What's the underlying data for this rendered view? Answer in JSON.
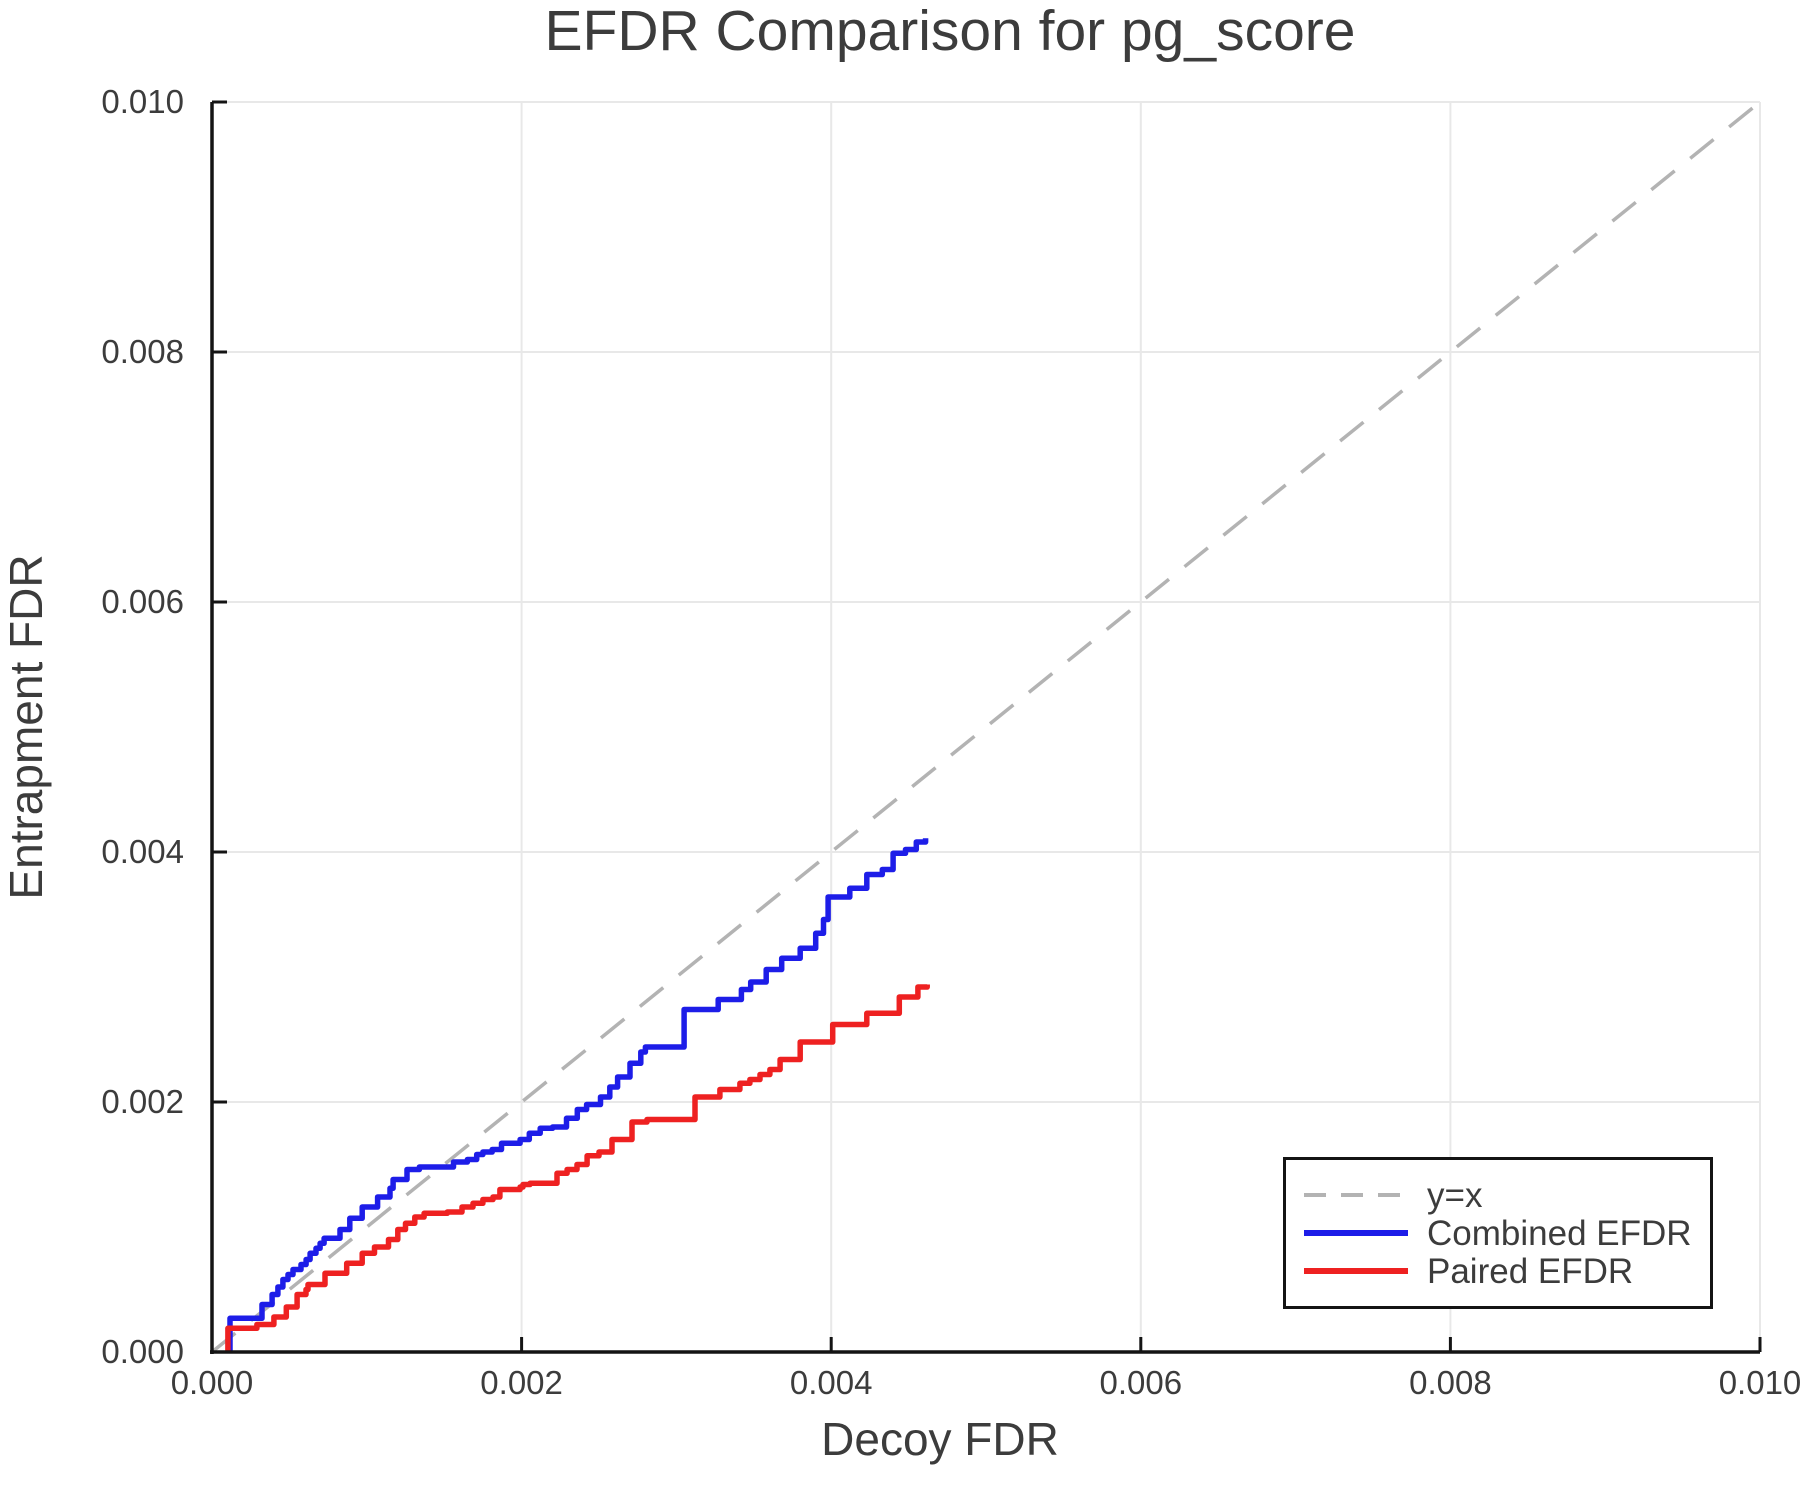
{
  "title": "EFDR Comparison for pg_score",
  "axes": {
    "x": {
      "label": "Decoy FDR",
      "ticks": [
        "0.000",
        "0.002",
        "0.004",
        "0.006",
        "0.008",
        "0.010"
      ]
    },
    "y": {
      "label": "Entrapment FDR",
      "ticks": [
        "0.000",
        "0.002",
        "0.004",
        "0.006",
        "0.008",
        "0.010"
      ]
    }
  },
  "legend": {
    "items": [
      {
        "label": "y=x",
        "color": "#b3b3b3",
        "style": "dashed"
      },
      {
        "label": "Combined EFDR",
        "color": "#1d1de8",
        "style": "solid"
      },
      {
        "label": "Paired EFDR",
        "color": "#ee2121",
        "style": "solid"
      }
    ]
  },
  "colors": {
    "text": "#3c3c3c",
    "spine": "#141414",
    "grid": "#e8e8e8",
    "background": "#ffffff"
  },
  "chart_data": {
    "type": "line",
    "title": "EFDR Comparison for pg_score",
    "xlabel": "Decoy FDR",
    "ylabel": "Entrapment FDR",
    "xlim": [
      0.0,
      0.01
    ],
    "ylim": [
      0.0,
      0.01
    ],
    "grid": true,
    "legend_position": "lower right",
    "series": [
      {
        "name": "y=x",
        "style": "dashed",
        "color": "#b3b3b3",
        "points": [
          [
            0.0,
            0.0
          ],
          [
            0.01,
            0.01
          ]
        ]
      },
      {
        "name": "Combined EFDR",
        "style": "step",
        "color": "#1d1de8",
        "points": [
          [
            0.000116,
            0.0
          ],
          [
            0.000116,
            0.00027
          ],
          [
            0.000323,
            0.00038
          ],
          [
            0.000388,
            0.00046
          ],
          [
            0.000426,
            0.00052
          ],
          [
            0.000458,
            0.00058
          ],
          [
            0.000491,
            0.00062
          ],
          [
            0.000523,
            0.00066
          ],
          [
            0.000575,
            0.0007
          ],
          [
            0.000608,
            0.00074
          ],
          [
            0.000634,
            0.00079
          ],
          [
            0.000672,
            0.00083
          ],
          [
            0.000698,
            0.00087
          ],
          [
            0.000724,
            0.00091
          ],
          [
            0.000827,
            0.00098
          ],
          [
            0.00089,
            0.00107
          ],
          [
            0.00097,
            0.00116
          ],
          [
            0.00107,
            0.00124
          ],
          [
            0.00115,
            0.00131
          ],
          [
            0.00117,
            0.00138
          ],
          [
            0.00126,
            0.00146
          ],
          [
            0.00134,
            0.00148
          ],
          [
            0.00156,
            0.00152
          ],
          [
            0.00165,
            0.00154
          ],
          [
            0.00171,
            0.00158
          ],
          [
            0.00175,
            0.0016
          ],
          [
            0.00181,
            0.00162
          ],
          [
            0.00187,
            0.00167
          ],
          [
            0.00199,
            0.0017
          ],
          [
            0.00205,
            0.00175
          ],
          [
            0.00212,
            0.00179
          ],
          [
            0.0022,
            0.0018
          ],
          [
            0.00229,
            0.00187
          ],
          [
            0.00236,
            0.00194
          ],
          [
            0.00242,
            0.00198
          ],
          [
            0.00251,
            0.00204
          ],
          [
            0.00257,
            0.00212
          ],
          [
            0.00262,
            0.0022
          ],
          [
            0.0027,
            0.00231
          ],
          [
            0.00277,
            0.0024
          ],
          [
            0.0028,
            0.00244
          ],
          [
            0.00305,
            0.00274
          ],
          [
            0.00327,
            0.00282
          ],
          [
            0.00342,
            0.0029
          ],
          [
            0.00348,
            0.00296
          ],
          [
            0.00358,
            0.00306
          ],
          [
            0.00368,
            0.00315
          ],
          [
            0.0038,
            0.00323
          ],
          [
            0.0039,
            0.00335
          ],
          [
            0.00395,
            0.00346
          ],
          [
            0.00398,
            0.00364
          ],
          [
            0.00412,
            0.00371
          ],
          [
            0.00423,
            0.00382
          ],
          [
            0.00433,
            0.00386
          ],
          [
            0.0044,
            0.00399
          ],
          [
            0.00448,
            0.00402
          ],
          [
            0.00455,
            0.00408
          ],
          [
            0.00461,
            0.00411
          ]
        ]
      },
      {
        "name": "Paired EFDR",
        "style": "step",
        "color": "#ee2121",
        "points": [
          [
            0.000103,
            0.0
          ],
          [
            0.000103,
            0.00019
          ],
          [
            0.00029,
            0.00022
          ],
          [
            0.0004,
            0.00028
          ],
          [
            0.00048,
            0.00036
          ],
          [
            0.00055,
            0.00046
          ],
          [
            0.000607,
            0.0005
          ],
          [
            0.00062,
            0.00054
          ],
          [
            0.00073,
            0.00063
          ],
          [
            0.00087,
            0.00071
          ],
          [
            0.00097,
            0.00079
          ],
          [
            0.00105,
            0.00084
          ],
          [
            0.00114,
            0.0009
          ],
          [
            0.0012,
            0.00098
          ],
          [
            0.00125,
            0.00103
          ],
          [
            0.00131,
            0.00108
          ],
          [
            0.00137,
            0.00111
          ],
          [
            0.00152,
            0.00112
          ],
          [
            0.001615,
            0.00116
          ],
          [
            0.001686,
            0.00119
          ],
          [
            0.00175,
            0.00122
          ],
          [
            0.001815,
            0.00124
          ],
          [
            0.00186,
            0.0013
          ],
          [
            0.00199,
            0.00132
          ],
          [
            0.002009,
            0.00134
          ],
          [
            0.002054,
            0.00135
          ],
          [
            0.002229,
            0.00143
          ],
          [
            0.002294,
            0.00146
          ],
          [
            0.002358,
            0.0015
          ],
          [
            0.002423,
            0.00157
          ],
          [
            0.0025,
            0.0016
          ],
          [
            0.002584,
            0.0017
          ],
          [
            0.002713,
            0.00184
          ],
          [
            0.00281,
            0.00186
          ],
          [
            0.00312,
            0.00204
          ],
          [
            0.003281,
            0.0021
          ],
          [
            0.00341,
            0.00215
          ],
          [
            0.003475,
            0.00218
          ],
          [
            0.00354,
            0.00222
          ],
          [
            0.003604,
            0.00226
          ],
          [
            0.00367,
            0.00234
          ],
          [
            0.0038,
            0.00248
          ],
          [
            0.00401,
            0.00262
          ],
          [
            0.00423,
            0.00271
          ],
          [
            0.00444,
            0.00284
          ],
          [
            0.00456,
            0.00292
          ],
          [
            0.00462,
            0.00294
          ]
        ]
      }
    ]
  }
}
